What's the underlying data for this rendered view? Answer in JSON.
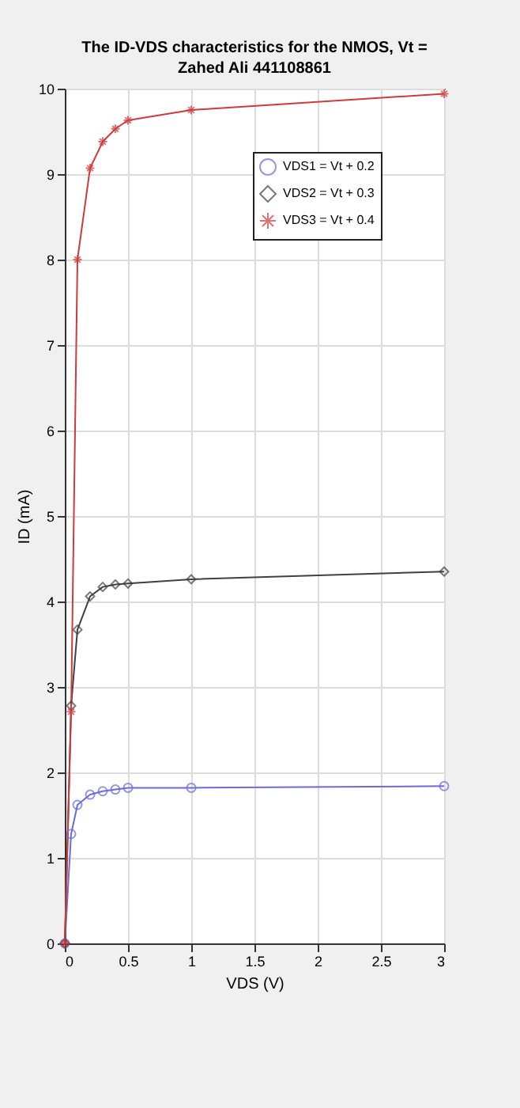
{
  "chart_data": {
    "type": "line",
    "title": "The ID-VDS characteristics for the NMOS, Vt =",
    "subtitle": "Zahed Ali 441108861",
    "xlabel": "VDS (V)",
    "ylabel": "ID (mA)",
    "x": [
      0,
      0.05,
      0.1,
      0.2,
      0.3,
      0.4,
      0.5,
      1,
      3
    ],
    "series": [
      {
        "name": "VDS1 = Vt + 0.2",
        "color": "#6b6bd8",
        "marker": "circle",
        "values": [
          0,
          1.28,
          1.62,
          1.74,
          1.78,
          1.8,
          1.82,
          1.82,
          1.84
        ]
      },
      {
        "name": "VDS2 = Vt + 0.3",
        "color": "#404040",
        "marker": "diamond",
        "values": [
          0,
          2.78,
          3.67,
          4.06,
          4.17,
          4.2,
          4.21,
          4.26,
          4.35
        ]
      },
      {
        "name": "VDS3 = Vt + 0.4",
        "color": "#d03a3a",
        "marker": "cross",
        "values": [
          0,
          2.71,
          8.0,
          9.07,
          9.38,
          9.53,
          9.63,
          9.75,
          9.94
        ]
      }
    ],
    "xlim": [
      0,
      3
    ],
    "xticks": [
      0,
      0.5,
      1,
      1.5,
      2,
      2.5,
      3
    ],
    "ylim": [
      0,
      10
    ],
    "yticks": [
      0,
      1,
      2,
      3,
      4,
      5,
      6,
      7,
      8,
      9,
      10
    ],
    "grid": true,
    "legend": "top right",
    "line_style": "solid"
  }
}
